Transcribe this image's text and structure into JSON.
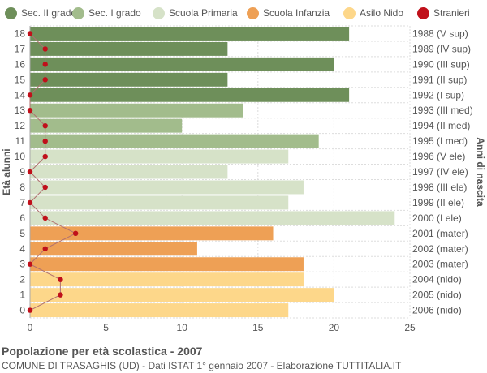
{
  "legend": [
    {
      "label": "Sec. II grado",
      "color": "#6e8f5a"
    },
    {
      "label": "Sec. I grado",
      "color": "#a2bc8c"
    },
    {
      "label": "Scuola Primaria",
      "color": "#d6e2c8"
    },
    {
      "label": "Scuola Infanzia",
      "color": "#eea055"
    },
    {
      "label": "Asilo Nido",
      "color": "#fdd78a"
    },
    {
      "label": "Stranieri",
      "color": "#c0101a"
    }
  ],
  "footer": {
    "title": "Popolazione per età scolastica - 2007",
    "subtitle": "COMUNE DI TRASAGHIS (UD) - Dati ISTAT 1° gennaio 2007 - Elaborazione TUTTITALIA.IT"
  },
  "chart_data": {
    "type": "bar",
    "orientation": "horizontal",
    "ylabel_left": "Età alunni",
    "ylabel_right": "Anni di nascita",
    "xlim": [
      0,
      25
    ],
    "xticks": [
      0,
      5,
      10,
      15,
      20,
      25
    ],
    "grid": true,
    "legend_position": "top",
    "categories": [
      18,
      17,
      16,
      15,
      14,
      13,
      12,
      11,
      10,
      9,
      8,
      7,
      6,
      5,
      4,
      3,
      2,
      1,
      0
    ],
    "birth_years": [
      "1988 (V sup)",
      "1989 (IV sup)",
      "1990 (III sup)",
      "1991 (II sup)",
      "1992 (I sup)",
      "1993 (III med)",
      "1994 (II med)",
      "1995 (I med)",
      "1996 (V ele)",
      "1997 (IV ele)",
      "1998 (III ele)",
      "1999 (II ele)",
      "2000 (I ele)",
      "2001 (mater)",
      "2002 (mater)",
      "2003 (mater)",
      "2004 (nido)",
      "2005 (nido)",
      "2006 (nido)"
    ],
    "values": [
      21,
      13,
      20,
      13,
      21,
      14,
      10,
      19,
      17,
      13,
      18,
      17,
      24,
      16,
      11,
      18,
      18,
      20,
      17
    ],
    "groups": [
      "Sec. II grado",
      "Sec. II grado",
      "Sec. II grado",
      "Sec. II grado",
      "Sec. II grado",
      "Sec. I grado",
      "Sec. I grado",
      "Sec. I grado",
      "Scuola Primaria",
      "Scuola Primaria",
      "Scuola Primaria",
      "Scuola Primaria",
      "Scuola Primaria",
      "Scuola Infanzia",
      "Scuola Infanzia",
      "Scuola Infanzia",
      "Asilo Nido",
      "Asilo Nido",
      "Asilo Nido"
    ],
    "stranieri": [
      0,
      1,
      1,
      1,
      0,
      0,
      1,
      1,
      1,
      0,
      1,
      0,
      1,
      3,
      1,
      0,
      2,
      2,
      0
    ]
  }
}
